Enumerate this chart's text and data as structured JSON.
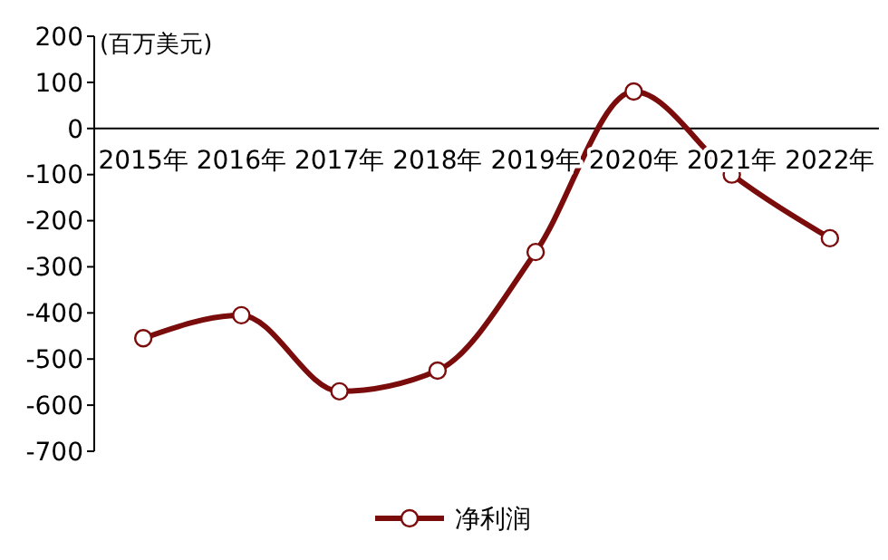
{
  "chart_data": {
    "type": "line",
    "ylabel": "(百万美元)",
    "categories": [
      "2015年",
      "2016年",
      "2017年",
      "2018年",
      "2019年",
      "2020年",
      "2021年",
      "2022年"
    ],
    "series": [
      {
        "name": "净利润",
        "color": "#7b0c0c",
        "values": [
          -455,
          -405,
          -570,
          -525,
          -268,
          80,
          -100,
          -238
        ]
      }
    ],
    "ylim": [
      -700,
      200
    ],
    "yticks": [
      -700,
      -600,
      -500,
      -400,
      -300,
      -200,
      -100,
      0,
      100,
      200
    ],
    "grid": false,
    "legend": "bottom",
    "marker": "circle",
    "line_style": "solid"
  }
}
